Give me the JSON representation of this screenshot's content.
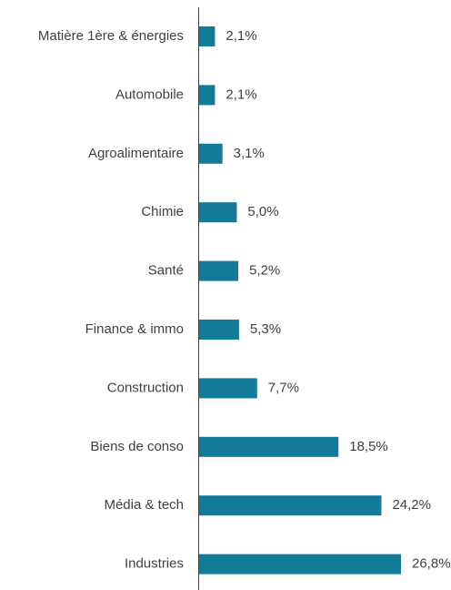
{
  "chart_data": {
    "type": "bar",
    "orientation": "horizontal",
    "categories": [
      "Matière 1ère & énergies",
      "Automobile",
      "Agroalimentaire",
      "Chimie",
      "Santé",
      "Finance & immo",
      "Construction",
      "Biens de conso",
      "Média & tech",
      "Industries"
    ],
    "values": [
      2.1,
      2.1,
      3.1,
      5.0,
      5.2,
      5.3,
      7.7,
      18.5,
      24.2,
      26.8
    ],
    "value_labels": [
      "2,1%",
      "2,1%",
      "3,1%",
      "5,0%",
      "5,2%",
      "5,3%",
      "7,7%",
      "18,5%",
      "24,2%",
      "26,8%"
    ],
    "color": "#127c98"
  }
}
